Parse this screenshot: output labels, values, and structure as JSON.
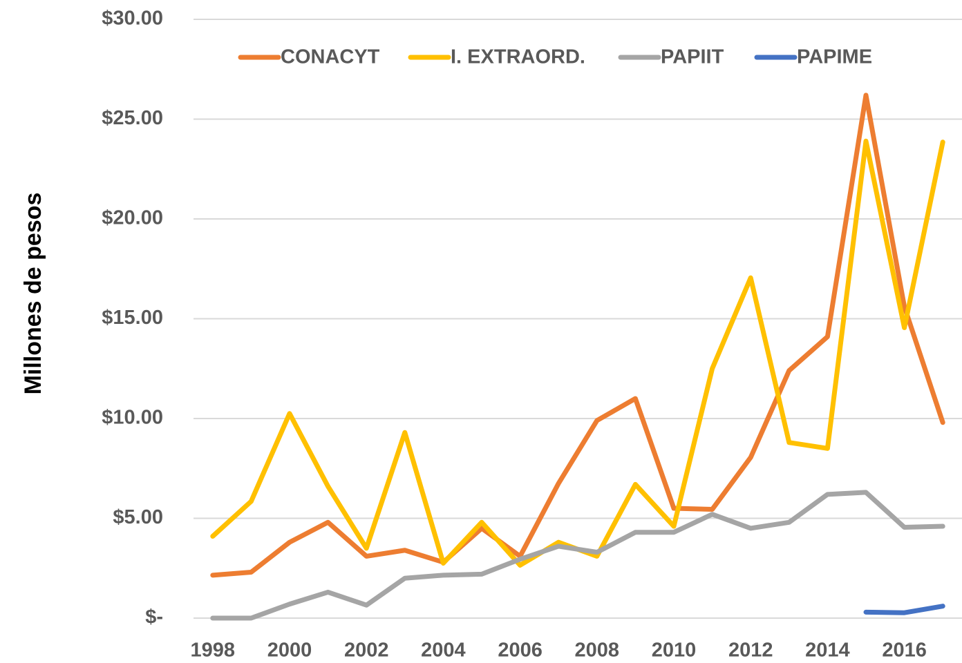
{
  "chart_data": {
    "type": "line",
    "y_label": "Millones de pesos",
    "x": [
      1998,
      1999,
      2000,
      2001,
      2002,
      2003,
      2004,
      2005,
      2006,
      2007,
      2008,
      2009,
      2010,
      2011,
      2012,
      2013,
      2014,
      2015,
      2016,
      2017
    ],
    "xlim": [
      1997.5,
      2017.5
    ],
    "xticks": [
      1998,
      2000,
      2002,
      2004,
      2006,
      2008,
      2010,
      2012,
      2014,
      2016
    ],
    "ylim": [
      0,
      30
    ],
    "yticks": [
      {
        "value": 0,
        "label": "$-"
      },
      {
        "value": 5,
        "label": "$5.00"
      },
      {
        "value": 10,
        "label": "$10.00"
      },
      {
        "value": 15,
        "label": "$15.00"
      },
      {
        "value": 20,
        "label": "$20.00"
      },
      {
        "value": 25,
        "label": "$25.00"
      },
      {
        "value": 30,
        "label": "$30.00"
      }
    ],
    "grid": true,
    "legend": "top",
    "series": [
      {
        "name": "CONACYT",
        "color": "#ed7d31",
        "values": [
          2.15,
          2.3,
          3.8,
          4.8,
          3.1,
          3.4,
          2.8,
          4.5,
          3.1,
          6.75,
          9.9,
          11.0,
          5.5,
          5.45,
          8.05,
          12.4,
          14.1,
          26.2,
          15.6,
          9.8
        ]
      },
      {
        "name": "I. EXTRAORD.",
        "color": "#ffc000",
        "values": [
          4.1,
          5.85,
          10.25,
          6.6,
          3.5,
          9.3,
          2.75,
          4.8,
          2.65,
          3.8,
          3.1,
          6.7,
          4.6,
          12.5,
          17.05,
          8.8,
          8.5,
          23.9,
          14.55,
          23.85
        ]
      },
      {
        "name": "PAPIIT",
        "color": "#a5a5a5",
        "values": [
          0,
          0,
          0.7,
          1.3,
          0.65,
          2.0,
          2.15,
          2.2,
          2.95,
          3.6,
          3.3,
          4.3,
          4.3,
          5.2,
          4.5,
          4.8,
          6.2,
          6.3,
          4.55,
          4.6
        ]
      },
      {
        "name": "PAPIME",
        "color": "#4472c4",
        "values": [
          null,
          null,
          null,
          null,
          null,
          null,
          null,
          null,
          null,
          null,
          null,
          null,
          null,
          null,
          null,
          null,
          null,
          0.3,
          0.27,
          0.6
        ]
      }
    ]
  }
}
